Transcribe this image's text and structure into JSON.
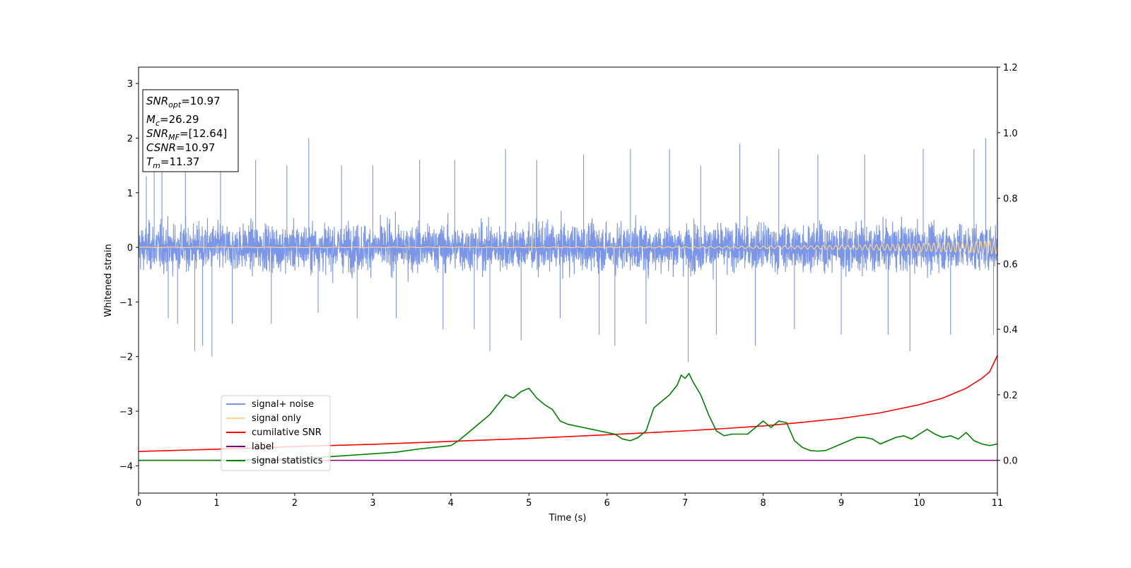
{
  "chart_data": {
    "type": "line",
    "title": "",
    "xlabel": "Time (s)",
    "ylabel": "Whitened strain",
    "xlim": [
      0,
      11
    ],
    "ylim": [
      -4.5,
      3.3
    ],
    "y2lim": [
      -0.1,
      1.2
    ],
    "x_ticks": [
      "0",
      "1",
      "2",
      "3",
      "4",
      "5",
      "6",
      "7",
      "8",
      "9",
      "10",
      "11"
    ],
    "y_ticks": [
      "3",
      "2",
      "1",
      "0",
      "−1",
      "−2",
      "−3",
      "−4"
    ],
    "y2_ticks": [
      "1.2",
      "1.0",
      "0.8",
      "0.6",
      "0.4",
      "0.2",
      "0.0"
    ],
    "grid": false,
    "legend_position": "lower-left",
    "legend": [
      {
        "label": "signal+ noise",
        "color": "#7b96e8"
      },
      {
        "label": "signal only",
        "color": "#ffd58a"
      },
      {
        "label": "cumilative SNR",
        "color": "#ff0000"
      },
      {
        "label": "label",
        "color": "#800080"
      },
      {
        "label": "signal statistics",
        "color": "#008000"
      }
    ],
    "annotation": {
      "snr_opt": {
        "sym": "SNR",
        "sub": "opt",
        "val": "=10.97"
      },
      "mc": {
        "sym": "M",
        "sub": "c",
        "val": "=26.29"
      },
      "snr_mf": {
        "sym": "SNR",
        "sub": "MF",
        "val": "=[12.64]"
      },
      "csnr": {
        "sym": "CSNR",
        "sub": "",
        "val": "=10.97"
      },
      "tm": {
        "sym": "T",
        "sub": "m",
        "val": "=11.37"
      }
    },
    "series": [
      {
        "name": "signal+ noise",
        "axis": "left",
        "color": "#7b96e8",
        "noise_amplitude_typical": 0.7,
        "spikes": [
          [
            0.1,
            1.3
          ],
          [
            0.2,
            1.4
          ],
          [
            0.3,
            1.8
          ],
          [
            0.38,
            -1.3
          ],
          [
            0.5,
            -1.4
          ],
          [
            0.6,
            1.5
          ],
          [
            0.72,
            -1.9
          ],
          [
            0.82,
            -1.8
          ],
          [
            0.94,
            -2.0
          ],
          [
            1.05,
            1.5
          ],
          [
            1.2,
            -1.4
          ],
          [
            1.5,
            1.6
          ],
          [
            1.7,
            -1.4
          ],
          [
            1.9,
            1.5
          ],
          [
            2.18,
            2.0
          ],
          [
            2.3,
            -1.2
          ],
          [
            2.6,
            1.5
          ],
          [
            2.8,
            -1.3
          ],
          [
            3.0,
            1.5
          ],
          [
            3.3,
            -1.3
          ],
          [
            3.6,
            1.6
          ],
          [
            3.9,
            -1.5
          ],
          [
            4.05,
            1.6
          ],
          [
            4.3,
            -1.5
          ],
          [
            4.5,
            -1.9
          ],
          [
            4.7,
            1.8
          ],
          [
            4.9,
            -1.7
          ],
          [
            5.1,
            1.6
          ],
          [
            5.4,
            -1.3
          ],
          [
            5.7,
            1.7
          ],
          [
            5.9,
            -1.6
          ],
          [
            6.1,
            -1.8
          ],
          [
            6.3,
            1.8
          ],
          [
            6.5,
            -1.4
          ],
          [
            6.8,
            1.8
          ],
          [
            7.04,
            -2.1
          ],
          [
            7.2,
            1.5
          ],
          [
            7.4,
            -1.6
          ],
          [
            7.7,
            1.9
          ],
          [
            7.9,
            -1.8
          ],
          [
            8.2,
            1.8
          ],
          [
            8.4,
            -1.5
          ],
          [
            8.7,
            1.7
          ],
          [
            9.0,
            -1.6
          ],
          [
            9.3,
            1.7
          ],
          [
            9.6,
            -1.6
          ],
          [
            9.88,
            -1.9
          ],
          [
            10.05,
            1.8
          ],
          [
            10.4,
            -1.6
          ],
          [
            10.7,
            1.8
          ],
          [
            10.85,
            2.0
          ],
          [
            10.95,
            -1.6
          ]
        ]
      },
      {
        "name": "signal only",
        "axis": "left",
        "color": "#ffd58a",
        "amplitude_start": 0.005,
        "amplitude_end": 0.12,
        "frequency_start_hz": 3,
        "frequency_end_hz": 18
      },
      {
        "name": "cumilative SNR",
        "axis": "right",
        "color": "#ff0000",
        "x": [
          0,
          1,
          2,
          3,
          4,
          5,
          6,
          7,
          7.5,
          8,
          8.5,
          9,
          9.5,
          10,
          10.3,
          10.6,
          10.8,
          10.9,
          11
        ],
        "values": [
          0.027,
          0.034,
          0.042,
          0.049,
          0.058,
          0.067,
          0.078,
          0.09,
          0.097,
          0.105,
          0.116,
          0.128,
          0.145,
          0.17,
          0.19,
          0.22,
          0.25,
          0.27,
          0.32
        ]
      },
      {
        "name": "label",
        "axis": "right",
        "color": "#800080",
        "x": [
          0,
          11
        ],
        "values": [
          0.0,
          0.0
        ]
      },
      {
        "name": "signal statistics",
        "axis": "right",
        "color": "#008000",
        "x": [
          0,
          0.5,
          1.0,
          1.5,
          2.0,
          2.5,
          3.0,
          3.3,
          3.6,
          3.8,
          4.0,
          4.1,
          4.2,
          4.3,
          4.4,
          4.5,
          4.6,
          4.7,
          4.8,
          4.9,
          5.0,
          5.1,
          5.2,
          5.3,
          5.4,
          5.5,
          5.6,
          5.7,
          5.8,
          5.9,
          6.0,
          6.1,
          6.2,
          6.3,
          6.4,
          6.5,
          6.6,
          6.7,
          6.8,
          6.9,
          6.95,
          7.0,
          7.05,
          7.1,
          7.2,
          7.3,
          7.4,
          7.5,
          7.6,
          7.7,
          7.8,
          7.9,
          8.0,
          8.1,
          8.2,
          8.3,
          8.4,
          8.5,
          8.6,
          8.7,
          8.8,
          8.9,
          9.0,
          9.1,
          9.2,
          9.3,
          9.4,
          9.5,
          9.6,
          9.7,
          9.8,
          9.9,
          10.0,
          10.1,
          10.2,
          10.3,
          10.4,
          10.5,
          10.6,
          10.7,
          10.8,
          10.9,
          11.0
        ],
        "values": [
          0.0,
          0.0,
          0.0,
          0.002,
          0.005,
          0.012,
          0.02,
          0.025,
          0.035,
          0.04,
          0.045,
          0.06,
          0.08,
          0.1,
          0.12,
          0.14,
          0.17,
          0.2,
          0.19,
          0.21,
          0.22,
          0.19,
          0.17,
          0.155,
          0.12,
          0.11,
          0.105,
          0.1,
          0.095,
          0.09,
          0.085,
          0.08,
          0.065,
          0.06,
          0.07,
          0.09,
          0.16,
          0.18,
          0.2,
          0.23,
          0.26,
          0.25,
          0.265,
          0.24,
          0.2,
          0.14,
          0.09,
          0.075,
          0.08,
          0.08,
          0.08,
          0.1,
          0.12,
          0.1,
          0.12,
          0.115,
          0.06,
          0.04,
          0.03,
          0.028,
          0.03,
          0.04,
          0.05,
          0.06,
          0.07,
          0.07,
          0.065,
          0.05,
          0.06,
          0.07,
          0.075,
          0.065,
          0.08,
          0.095,
          0.08,
          0.07,
          0.075,
          0.065,
          0.085,
          0.06,
          0.05,
          0.045,
          0.05
        ]
      }
    ]
  }
}
